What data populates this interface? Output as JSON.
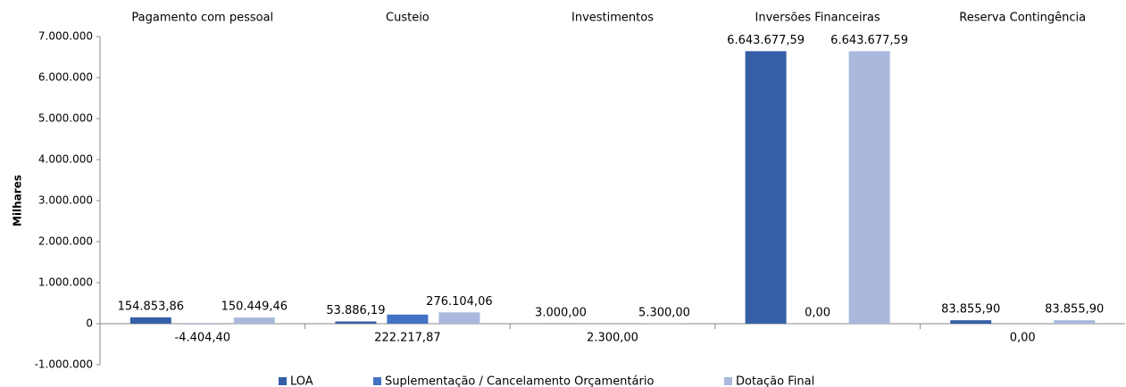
{
  "chart_data": {
    "type": "bar",
    "y_label": "Milhares",
    "categories": [
      "Pagamento com pessoal",
      "Custeio",
      "Investimentos",
      "Inversões Financeiras",
      "Reserva Contingência"
    ],
    "series": [
      {
        "name": "LOA",
        "color": "#355fa7",
        "values": [
          154853.86,
          53886.19,
          3000,
          6643677.59,
          83855.9
        ],
        "value_labels": [
          "154.853,86",
          "53.886,19",
          "3.000,00",
          "6.643.677,59",
          "83.855,90"
        ]
      },
      {
        "name": "Suplementação / Cancelamento Orçamentário",
        "color": "#4472c4",
        "values": [
          -4404.4,
          222217.87,
          2300,
          0,
          0
        ],
        "value_labels": [
          "-4.404,40",
          "222.217,87",
          "2.300,00",
          "0,00",
          "0,00"
        ]
      },
      {
        "name": "Dotação Final",
        "color": "#a9b8dc",
        "values": [
          150449.46,
          276104.06,
          5300,
          6643677.59,
          83855.9
        ],
        "value_labels": [
          "150.449,46",
          "276.104,06",
          "5.300,00",
          "6.643.677,59",
          "83.855,90"
        ]
      }
    ],
    "ylim": [
      -1000000,
      7000000
    ],
    "yticks": [
      {
        "value": -1000000,
        "label": "-1.000.000"
      },
      0,
      {
        "value": 1000000,
        "label": "1.000.000"
      },
      {
        "value": 2000000,
        "label": "2.000.000"
      },
      {
        "value": 3000000,
        "label": "3.000.000"
      },
      {
        "value": 4000000,
        "label": "4.000.000"
      },
      {
        "value": 5000000,
        "label": "5.000.000"
      },
      {
        "value": 6000000,
        "label": "6.000.000"
      },
      {
        "value": 7000000,
        "label": "7.000.000"
      }
    ],
    "grid": false
  }
}
